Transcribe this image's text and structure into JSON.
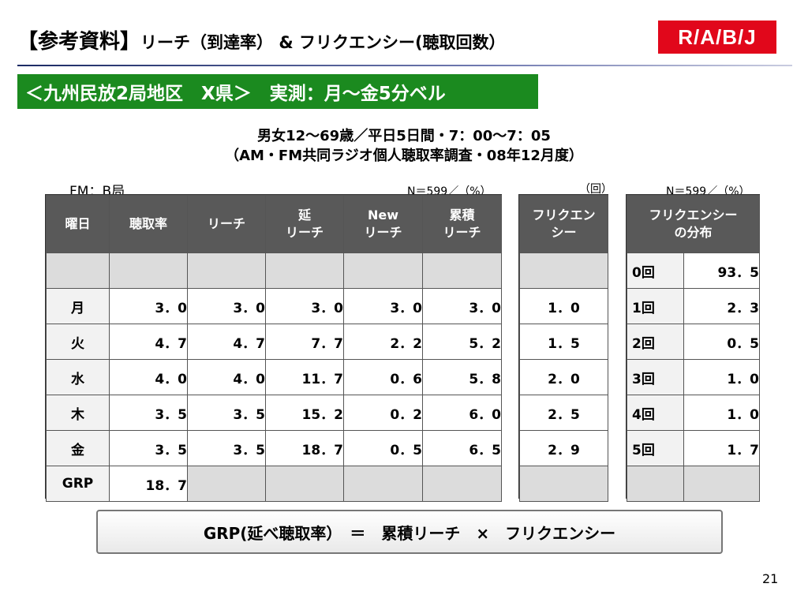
{
  "title": {
    "main": "【参考資料】",
    "sub": "リーチ（到達率） & フリクエンシー(聴取回数）"
  },
  "logo": {
    "text": "R/A/B/J",
    "color": "#e1071b"
  },
  "banner": {
    "text": "＜九州民放2局地区　X県＞　実測：月～金5分ベル",
    "color": "#1b8a1f"
  },
  "conditions": {
    "line1": "男女12～69歳／平日5日間・7：00～7：05",
    "line2": "（AM・FM共同ラジオ個人聴取率調査・08年12月度）"
  },
  "labels": {
    "station": "FM：B局",
    "n_left": "N＝599／（%）",
    "unit_kai": "（回）",
    "n_right": "N＝599／（%）"
  },
  "main_table": {
    "headers": [
      "曜日",
      "聴取率",
      "リーチ",
      "延\nリーチ",
      "New\nリーチ",
      "累積\nリーチ"
    ],
    "rows": [
      [
        "月",
        "3．0",
        "3．0",
        "3．0",
        "3．0",
        "3．0"
      ],
      [
        "火",
        "4．7",
        "4．7",
        "7．7",
        "2．2",
        "5．2"
      ],
      [
        "水",
        "4．0",
        "4．0",
        "11．7",
        "0．6",
        "5．8"
      ],
      [
        "木",
        "3．5",
        "3．5",
        "15．2",
        "0．2",
        "6．0"
      ],
      [
        "金",
        "3．5",
        "3．5",
        "18．7",
        "0．5",
        "6．5"
      ]
    ],
    "grp_label": "GRP",
    "grp_value": "18．7"
  },
  "freq_table": {
    "header": "フリクエン\nシー",
    "values": [
      "1．0",
      "1．5",
      "2．0",
      "2．5",
      "2．9"
    ]
  },
  "dist_table": {
    "header": "フリクエンシー\nの分布",
    "rows": [
      [
        "0回",
        "93．5"
      ],
      [
        "1回",
        "2．3"
      ],
      [
        "2回",
        "0．5"
      ],
      [
        "3回",
        "1．0"
      ],
      [
        "4回",
        "1．0"
      ],
      [
        "5回",
        "1．7"
      ]
    ]
  },
  "formula": "GRP(延べ聴取率）　＝　累積リーチ　×　フリクエンシー",
  "page_number": "21"
}
